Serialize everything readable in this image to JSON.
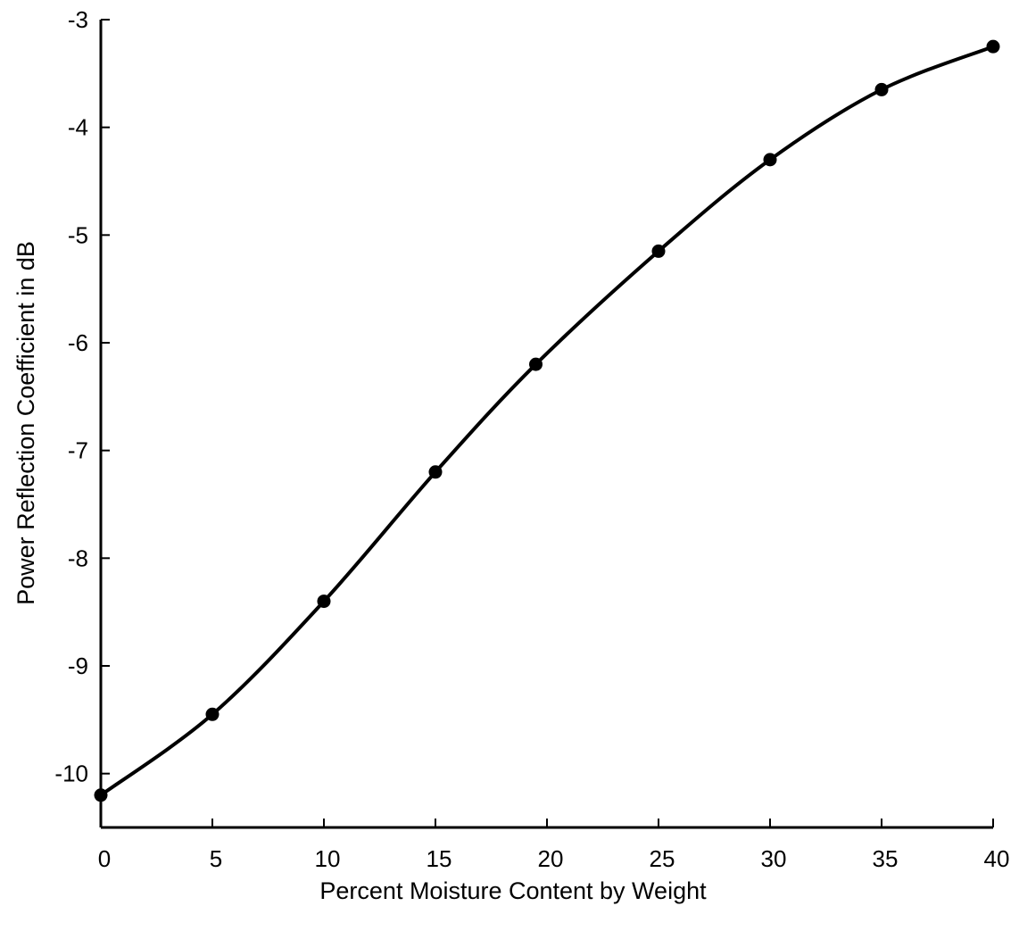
{
  "chart_data": {
    "type": "line",
    "title": "",
    "xlabel": "Percent Moisture Content by Weight",
    "ylabel": "Power Reflection Coefficient in dB",
    "xlim": [
      0,
      40
    ],
    "ylim": [
      -10.5,
      -3
    ],
    "xticks": [
      0,
      5,
      10,
      15,
      20,
      25,
      30,
      35,
      40
    ],
    "yticks": [
      -10,
      -9,
      -8,
      -7,
      -6,
      -5,
      -4,
      -3
    ],
    "xtick_labels": [
      "0",
      "5",
      "10",
      "15",
      "20",
      "25",
      "30",
      "35",
      "40"
    ],
    "ytick_labels": [
      "-10",
      "-9",
      "-8",
      "-7",
      "-6",
      "-5",
      "-4",
      "-3"
    ],
    "grid": false,
    "legend": "none",
    "series": [
      {
        "x": [
          0,
          5,
          10,
          15,
          19.5,
          25,
          30,
          35,
          40
        ],
        "y": [
          -10.2,
          -9.45,
          -8.4,
          -7.2,
          -6.2,
          -5.15,
          -4.3,
          -3.65,
          -3.25
        ],
        "marker": "filled-circle",
        "line": "smooth"
      }
    ],
    "colors": {
      "line": "#000000",
      "marker": "#000000",
      "axis": "#000000"
    }
  }
}
